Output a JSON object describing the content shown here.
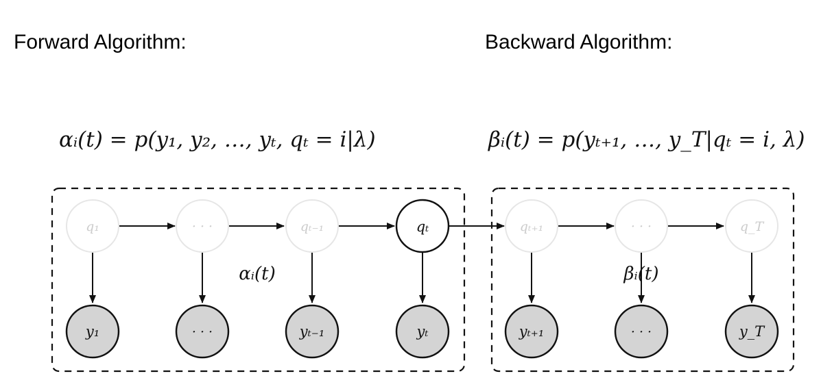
{
  "headings": {
    "forward": "Forward Algorithm:",
    "backward": "Backward Algorithm:"
  },
  "formulas": {
    "forward": "αᵢ(t) = p(y₁, y₂, …, yₜ, qₜ = i|λ)",
    "backward": "βᵢ(t) = p(yₜ₊₁, …, y_T|qₜ = i, λ)"
  },
  "forward_panel": {
    "annotation": "αᵢ(t)",
    "hidden": [
      {
        "label": "q₁",
        "active": false
      },
      {
        "label": "· · ·",
        "active": false
      },
      {
        "label": "qₜ₋₁",
        "active": false
      },
      {
        "label": "qₜ",
        "active": true
      }
    ],
    "observed": [
      "y₁",
      "· · ·",
      "yₜ₋₁",
      "yₜ"
    ]
  },
  "backward_panel": {
    "annotation": "βᵢ(t)",
    "hidden": [
      {
        "label": "qₜ₊₁",
        "active": false
      },
      {
        "label": "· · ·",
        "active": false
      },
      {
        "label": "q_T",
        "active": false
      }
    ],
    "observed": [
      "yₜ₊₁",
      "· · ·",
      "y_T"
    ]
  },
  "colors": {
    "faded_node": "#e6e6e6",
    "faded_text": "#cccccc",
    "observed_fill": "#d4d4d4",
    "stroke": "#111111"
  }
}
